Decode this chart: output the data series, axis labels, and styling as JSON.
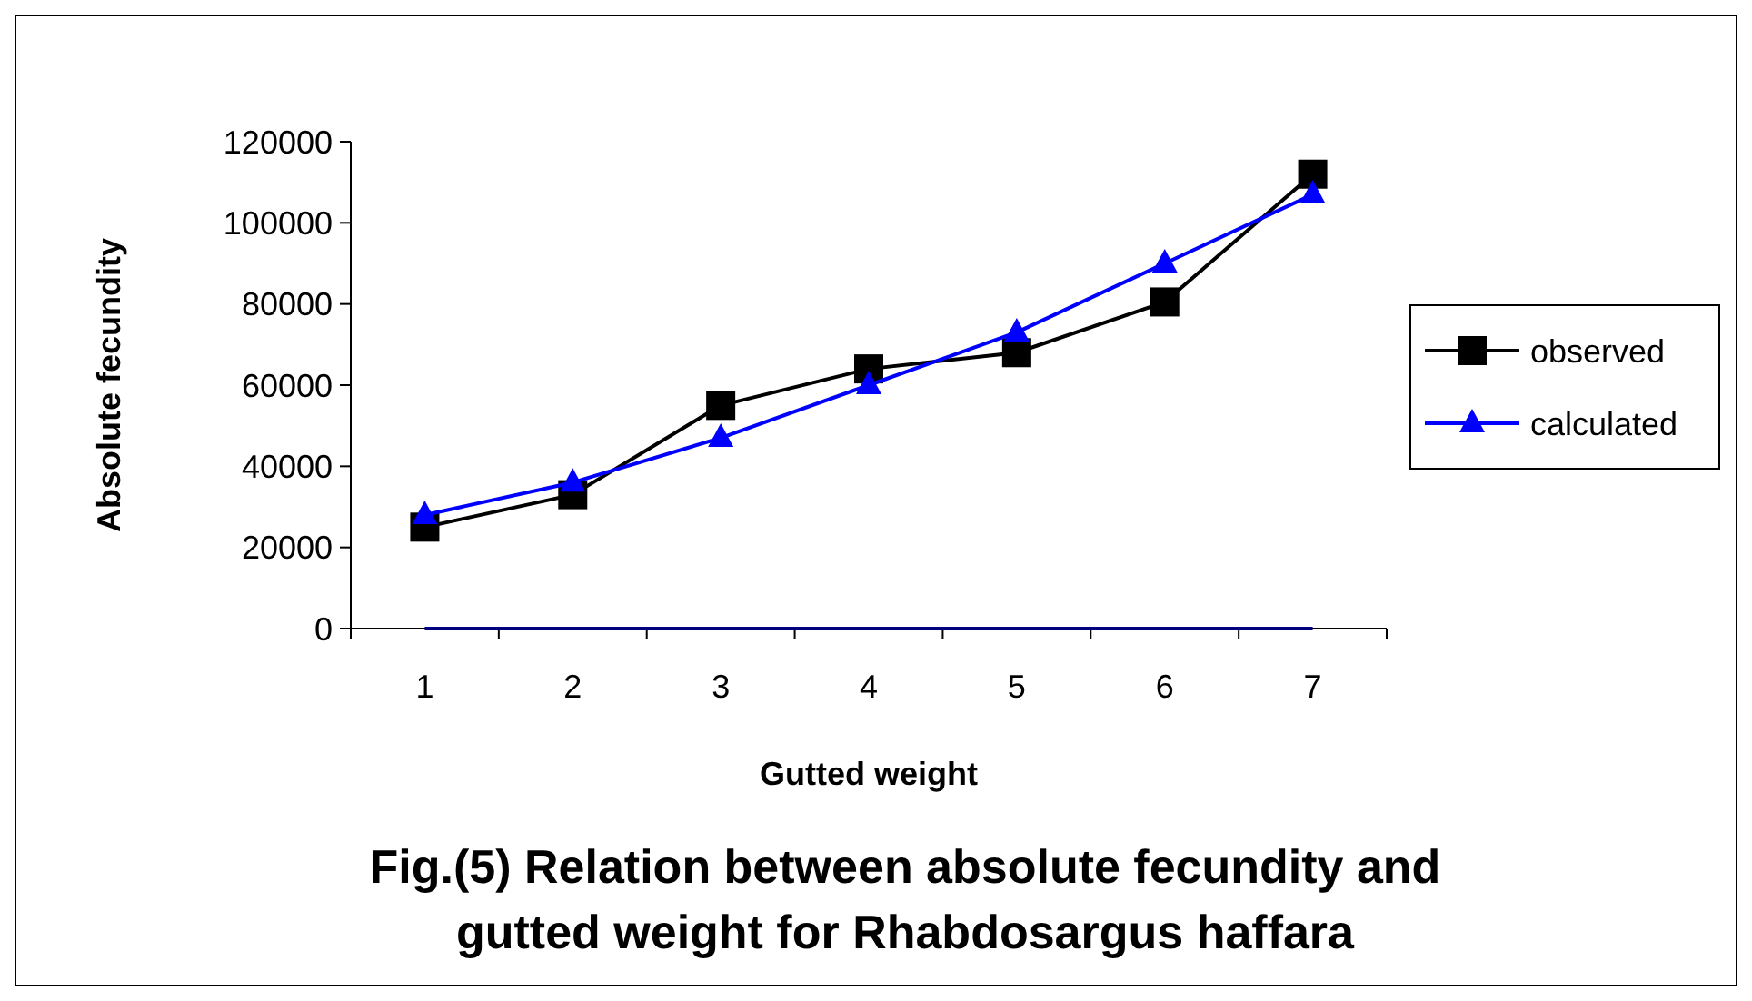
{
  "chart_data": {
    "type": "line",
    "title": "Fig.(5) Relation between absolute fecundity and gutted weight for Rhabdosargus haffara",
    "xlabel": "Gutted weight",
    "ylabel": "Absolute fecundity",
    "categories": [
      "1",
      "2",
      "3",
      "4",
      "5",
      "6",
      "7"
    ],
    "ylim": [
      0,
      120000
    ],
    "yticks": [
      0,
      20000,
      40000,
      60000,
      80000,
      100000,
      120000
    ],
    "legend": "right",
    "grid": false,
    "series": [
      {
        "name": "observed",
        "color": "#000000",
        "marker": "square",
        "values": [
          25000,
          33000,
          55000,
          64000,
          68000,
          80500,
          112000
        ]
      },
      {
        "name": "calculated",
        "color": "#0000ff",
        "marker": "triangle",
        "values": [
          28000,
          36000,
          47000,
          60000,
          73000,
          90000,
          107000
        ]
      },
      {
        "color": "#000080",
        "marker": "none",
        "values": [
          0,
          0,
          0,
          0,
          0,
          0,
          0
        ]
      }
    ]
  }
}
